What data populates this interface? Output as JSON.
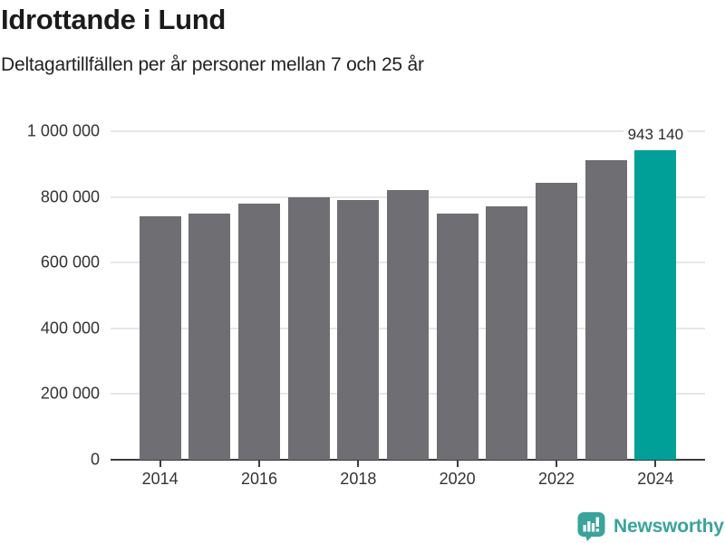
{
  "title": "Idrottande i Lund",
  "subtitle": "Deltagartillfällen per år personer mellan 7 och 25 år",
  "chart_data": {
    "type": "bar",
    "categories": [
      "2014",
      "2015",
      "2016",
      "2017",
      "2018",
      "2019",
      "2020",
      "2021",
      "2022",
      "2023",
      "2024"
    ],
    "values": [
      740000,
      750000,
      780000,
      800000,
      790000,
      820000,
      750000,
      772000,
      842000,
      912000,
      943140
    ],
    "title": "Idrottande i Lund",
    "subtitle": "Deltagartillfällen per år personer mellan 7 och 25 år",
    "xlabel": "",
    "ylabel": "",
    "ylim": [
      0,
      1000000
    ],
    "ytick_step": 200000,
    "ytick_labels": [
      "0",
      "200 000",
      "400 000",
      "600 000",
      "800 000",
      "1 000 000"
    ],
    "xtick_labels": [
      "2014",
      "2016",
      "2018",
      "2020",
      "2022",
      "2024"
    ],
    "grid": true,
    "legend": "none",
    "bar_color": "#6e6e73",
    "highlight_color": "#00a099",
    "highlight_index": 10,
    "annotation": "943 140"
  },
  "footer": {
    "brand": "Newsworthy",
    "logo_icon": "bar-chart-speech-bubble-icon",
    "brand_color": "#3aa39b"
  }
}
